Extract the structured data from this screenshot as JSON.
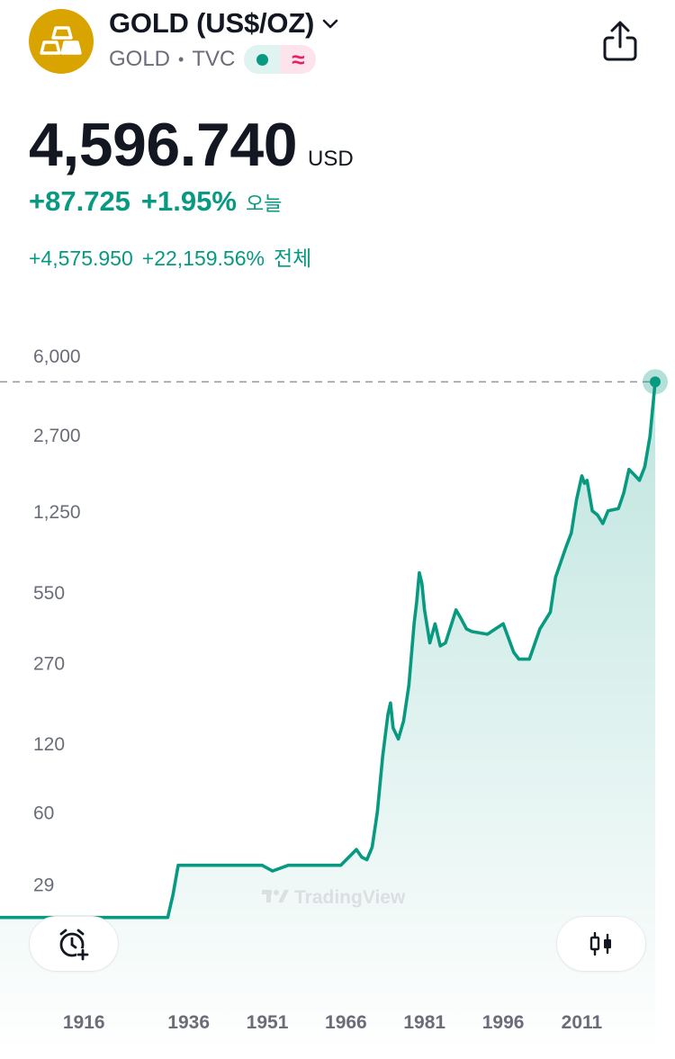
{
  "header": {
    "title": "GOLD (US$/OZ)",
    "symbol": "GOLD",
    "exchange": "TVC",
    "logo_icon": "gold-bars-icon",
    "status_icon": "market-open-dot-icon",
    "data_icon": "approx-data-icon",
    "share_icon": "share-icon",
    "colors": {
      "logo_bg": "#d9a300",
      "accent": "#089981",
      "data_badge": "#e91e63"
    }
  },
  "quote": {
    "price": "4,596.740",
    "currency": "USD",
    "change_abs": "+87.725",
    "change_pct": "+1.95%",
    "change_label": "오늘",
    "total_abs": "+4,575.950",
    "total_pct": "+22,159.56%",
    "total_label": "전체"
  },
  "controls": {
    "alert_icon": "add-alert-clock-icon",
    "chart_type_icon": "candlestick-icon"
  },
  "chart_data": {
    "type": "area",
    "scale": "log",
    "y_ticks": [
      "6,000",
      "2,700",
      "1,250",
      "550",
      "270",
      "120",
      "60",
      "29"
    ],
    "x_ticks": [
      "1916",
      "1936",
      "1951",
      "1966",
      "1981",
      "1996",
      "2011"
    ],
    "xlim": [
      1900,
      2025
    ],
    "ylim": [
      15,
      6000
    ],
    "last_value": 4596.74,
    "watermark": "TradingView",
    "line_color": "#089981",
    "series": [
      {
        "x": [
          1900,
          1910,
          1920,
          1930,
          1932,
          1933,
          1934,
          1935,
          1940,
          1950,
          1952,
          1955,
          1960,
          1965,
          1968,
          1969,
          1970,
          1971,
          1972,
          1973,
          1974,
          1974.5,
          1975,
          1976,
          1977,
          1978,
          1979,
          1979.5,
          1980,
          1980.5,
          1981,
          1982,
          1983,
          1984,
          1985,
          1986,
          1987,
          1988,
          1989,
          1990,
          1993,
          1996,
          1998,
          1999,
          2001,
          2003,
          2005,
          2006,
          2008,
          2009,
          2010,
          2011,
          2011.5,
          2012,
          2013,
          2014,
          2015,
          2016,
          2018,
          2019,
          2020,
          2021,
          2022,
          2023,
          2024,
          2025
        ],
        "y": [
          20.67,
          20.67,
          20.67,
          20.67,
          20.67,
          26,
          35,
          35,
          35,
          35,
          33,
          35,
          35,
          35,
          41,
          38,
          37,
          42,
          60,
          105,
          160,
          180,
          140,
          125,
          150,
          215,
          400,
          500,
          670,
          600,
          460,
          330,
          400,
          320,
          330,
          390,
          460,
          420,
          380,
          370,
          360,
          400,
          300,
          280,
          280,
          380,
          450,
          640,
          870,
          1000,
          1400,
          1780,
          1650,
          1700,
          1250,
          1200,
          1100,
          1250,
          1280,
          1500,
          1900,
          1800,
          1700,
          1950,
          2650,
          4596.74
        ]
      }
    ]
  }
}
